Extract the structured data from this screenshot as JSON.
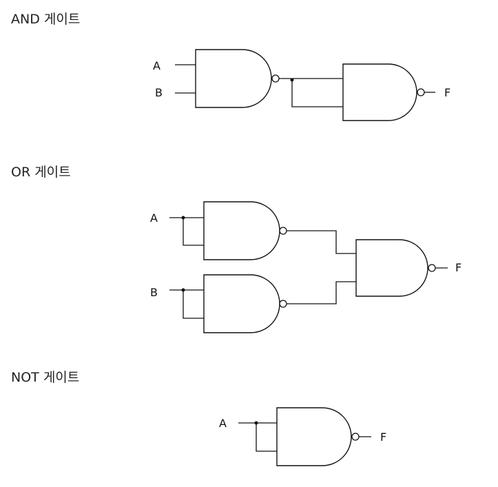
{
  "sections": {
    "and": {
      "heading": "AND 게이트",
      "input_a": "A",
      "input_b": "B",
      "output": "F"
    },
    "or": {
      "heading": "OR 게이트",
      "input_a": "A",
      "input_b": "B",
      "output": "F"
    },
    "not": {
      "heading": "NOT 게이트",
      "input_a": "A",
      "output": "F"
    }
  }
}
